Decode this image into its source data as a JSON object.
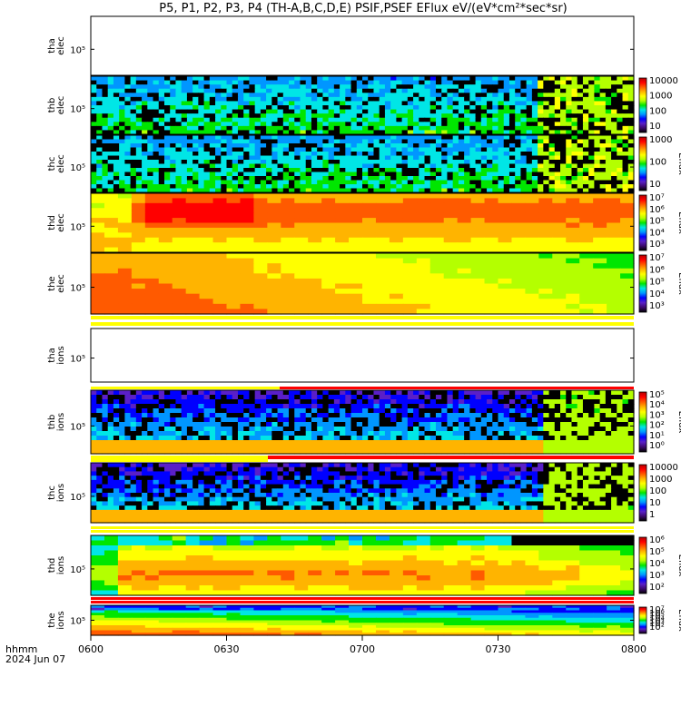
{
  "chart_data": {
    "type": "heatmap",
    "title": "P5, P1, P2, P3, P4 (TH-A,B,C,D,E) PSIF,PSEF EFlux eV/(eV*cm²*sec*sr)",
    "xlabel": "hhmm",
    "date_label": "2024 Jun 07",
    "x_range": [
      "0600",
      "0800"
    ],
    "x_ticks": [
      "0600",
      "0630",
      "0700",
      "0730",
      "0800"
    ],
    "ytick_label": "10⁵",
    "panels": [
      {
        "id": "tha-elec",
        "ylabel": [
          "tha",
          "elec"
        ],
        "has_data": false,
        "colorbar_labels": [],
        "colorbar_title": ""
      },
      {
        "id": "thb-elec",
        "ylabel": [
          "thb",
          "elec"
        ],
        "has_data": true,
        "style": "sparse",
        "colorbar_labels": [
          "10000",
          "1000",
          "100",
          "10"
        ],
        "colorbar_title": ""
      },
      {
        "id": "thc-elec",
        "ylabel": [
          "thc",
          "elec"
        ],
        "has_data": true,
        "style": "sparse",
        "colorbar_labels": [
          "1000",
          "100",
          "10"
        ],
        "colorbar_title": "Eflux"
      },
      {
        "id": "thd-elec",
        "ylabel": [
          "thd",
          "elec"
        ],
        "has_data": true,
        "style": "intense",
        "colorbar_labels": [
          "10⁷",
          "10⁶",
          "10⁵",
          "10⁴",
          "10³"
        ],
        "colorbar_title": "Eflux"
      },
      {
        "id": "the-elec",
        "ylabel": [
          "the",
          "elec"
        ],
        "has_data": true,
        "style": "smooth",
        "colorbar_labels": [
          "10⁷",
          "10⁶",
          "10⁵",
          "10⁴",
          "10³"
        ],
        "colorbar_title": "Eflux"
      },
      {
        "id": "tha-ions",
        "ylabel": [
          "tha",
          "ions"
        ],
        "has_data": false,
        "colorbar_labels": [],
        "colorbar_title": ""
      },
      {
        "id": "thb-ions",
        "ylabel": [
          "thb",
          "ions"
        ],
        "has_data": true,
        "style": "sparse-ion",
        "colorbar_labels": [
          "10⁵",
          "10⁴",
          "10³",
          "10²",
          "10¹",
          "10⁰"
        ],
        "colorbar_title": "Eflux"
      },
      {
        "id": "thc-ions",
        "ylabel": [
          "thc",
          "ions"
        ],
        "has_data": true,
        "style": "sparse-ion",
        "colorbar_labels": [
          "10000",
          "1000",
          "100",
          "10",
          "1"
        ],
        "colorbar_title": ""
      },
      {
        "id": "thd-ions",
        "ylabel": [
          "thd",
          "ions"
        ],
        "has_data": true,
        "style": "intense-ion",
        "colorbar_labels": [
          "10⁶",
          "10⁵",
          "10⁴",
          "10³",
          "10²"
        ],
        "colorbar_title": "Eflux"
      },
      {
        "id": "the-ions",
        "ylabel": [
          "the",
          "ions"
        ],
        "has_data": true,
        "style": "smooth-ion",
        "colorbar_labels": [
          "10⁷",
          "10⁶",
          "10⁵",
          "10⁴",
          "10³",
          "10²"
        ],
        "colorbar_title": "Eflux"
      }
    ],
    "colormap": [
      "#000000",
      "#3c0a6e",
      "#5a1fc8",
      "#0000ff",
      "#0096ff",
      "#00e6e6",
      "#00e600",
      "#b4ff00",
      "#ffff00",
      "#ffb400",
      "#ff5a00",
      "#ff0000",
      "#b40000"
    ]
  }
}
